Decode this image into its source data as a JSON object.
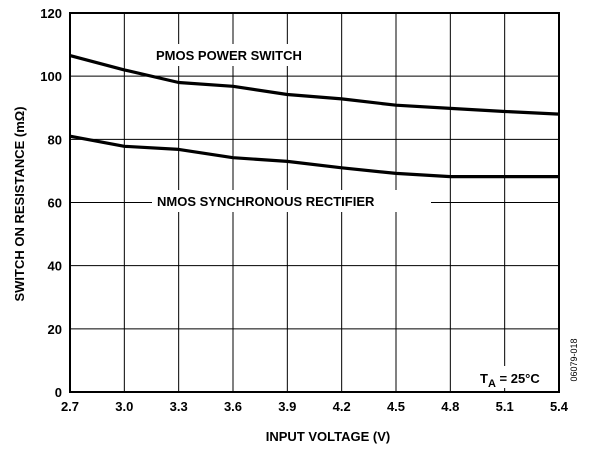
{
  "chart_data": {
    "type": "line",
    "xlabel": "INPUT VOLTAGE (V)",
    "ylabel": "SWITCH ON RESISTANCE (mΩ)",
    "xlim": [
      2.7,
      5.4
    ],
    "ylim": [
      0,
      120
    ],
    "x_ticks": [
      "2.7",
      "3.0",
      "3.3",
      "3.6",
      "3.9",
      "4.2",
      "4.5",
      "4.8",
      "5.1",
      "5.4"
    ],
    "y_ticks": [
      "0",
      "20",
      "40",
      "60",
      "80",
      "100",
      "120"
    ],
    "grid": true,
    "series": [
      {
        "name": "PMOS POWER SWITCH",
        "x": [
          2.7,
          3.0,
          3.3,
          3.6,
          3.9,
          4.2,
          4.5,
          4.8,
          5.1,
          5.4
        ],
        "values": [
          106.5,
          102,
          98,
          96.8,
          94.2,
          92.8,
          90.8,
          89.8,
          88.8,
          88
        ]
      },
      {
        "name": "NMOS SYNCHRONOUS RECTIFIER",
        "x": [
          2.7,
          3.0,
          3.3,
          3.6,
          3.9,
          4.2,
          4.5,
          4.8,
          5.1,
          5.4
        ],
        "values": [
          81,
          77.8,
          76.8,
          74.2,
          73,
          71,
          69.2,
          68.2,
          68.2,
          68.2
        ]
      }
    ],
    "annotations": {
      "temperature_prefix": "T",
      "temperature_subscript": "A",
      "temperature_value": " = 25°C"
    },
    "figure_id": "06079-018"
  }
}
